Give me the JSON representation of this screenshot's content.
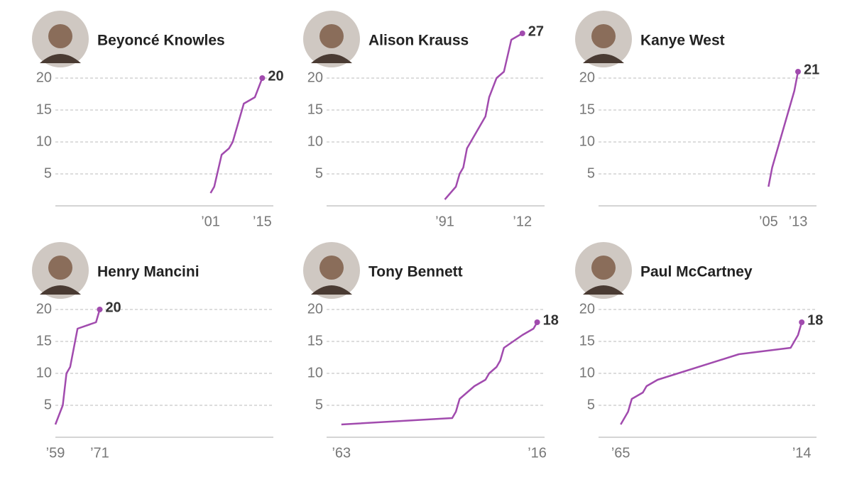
{
  "chart_data": [
    {
      "type": "line",
      "title": "Beyoncé Knowles",
      "color": "#a14bae",
      "x": [
        2001,
        2002,
        2004,
        2006,
        2007,
        2010,
        2013,
        2015
      ],
      "values": [
        2,
        3,
        8,
        9,
        10,
        16,
        17,
        20
      ],
      "xlim": [
        1959,
        2018
      ],
      "ylim": [
        0,
        27
      ],
      "yticks": [
        5,
        10,
        15,
        20
      ],
      "xticks": [
        {
          "value": 2001,
          "label": "’01"
        },
        {
          "value": 2015,
          "label": "’15"
        }
      ],
      "grid": true
    },
    {
      "type": "line",
      "title": "Alison Krauss",
      "color": "#a14bae",
      "x": [
        1991,
        1994,
        1995,
        1996,
        1997,
        2002,
        2003,
        2005,
        2007,
        2009,
        2012
      ],
      "values": [
        1,
        3,
        5,
        6,
        9,
        14,
        17,
        20,
        21,
        26,
        27
      ],
      "xlim": [
        1959,
        2018
      ],
      "ylim": [
        0,
        27
      ],
      "yticks": [
        5,
        10,
        15,
        20
      ],
      "xticks": [
        {
          "value": 1991,
          "label": "’91"
        },
        {
          "value": 2012,
          "label": "’12"
        }
      ],
      "grid": true
    },
    {
      "type": "line",
      "title": "Kanye West",
      "color": "#a14bae",
      "x": [
        2005,
        2006,
        2008,
        2012,
        2013
      ],
      "values": [
        3,
        6,
        10,
        18,
        21
      ],
      "xlim": [
        1959,
        2018
      ],
      "ylim": [
        0,
        27
      ],
      "yticks": [
        5,
        10,
        15,
        20
      ],
      "xticks": [
        {
          "value": 2005,
          "label": "’05"
        },
        {
          "value": 2013,
          "label": "’13"
        }
      ],
      "grid": true
    },
    {
      "type": "line",
      "title": "Henry Mancini",
      "color": "#a14bae",
      "x": [
        1959,
        1961,
        1962,
        1963,
        1965,
        1970,
        1971
      ],
      "values": [
        2,
        5,
        10,
        11,
        17,
        18,
        20
      ],
      "xlim": [
        1959,
        2018
      ],
      "ylim": [
        0,
        27
      ],
      "yticks": [
        5,
        10,
        15,
        20
      ],
      "xticks": [
        {
          "value": 1959,
          "label": "’59"
        },
        {
          "value": 1971,
          "label": "’71"
        }
      ],
      "grid": true
    },
    {
      "type": "line",
      "title": "Tony Bennett",
      "color": "#a14bae",
      "x": [
        1963,
        1993,
        1994,
        1995,
        1997,
        1999,
        2002,
        2003,
        2005,
        2006,
        2007,
        2012,
        2015,
        2016
      ],
      "values": [
        2,
        3,
        4,
        6,
        7,
        8,
        9,
        10,
        11,
        12,
        14,
        16,
        17,
        18
      ],
      "xlim": [
        1959,
        2018
      ],
      "ylim": [
        0,
        27
      ],
      "yticks": [
        5,
        10,
        15,
        20
      ],
      "xticks": [
        {
          "value": 1963,
          "label": "’63"
        },
        {
          "value": 2016,
          "label": "’16"
        }
      ],
      "grid": true
    },
    {
      "type": "line",
      "title": "Paul McCartney",
      "color": "#a14bae",
      "x": [
        1965,
        1967,
        1968,
        1971,
        1972,
        1975,
        1997,
        2011,
        2013,
        2014
      ],
      "values": [
        2,
        4,
        6,
        7,
        8,
        9,
        13,
        14,
        16,
        18
      ],
      "xlim": [
        1959,
        2018
      ],
      "ylim": [
        0,
        27
      ],
      "yticks": [
        5,
        10,
        15,
        20
      ],
      "xticks": [
        {
          "value": 1965,
          "label": "’65"
        },
        {
          "value": 2014,
          "label": "’14"
        }
      ],
      "grid": true
    }
  ]
}
